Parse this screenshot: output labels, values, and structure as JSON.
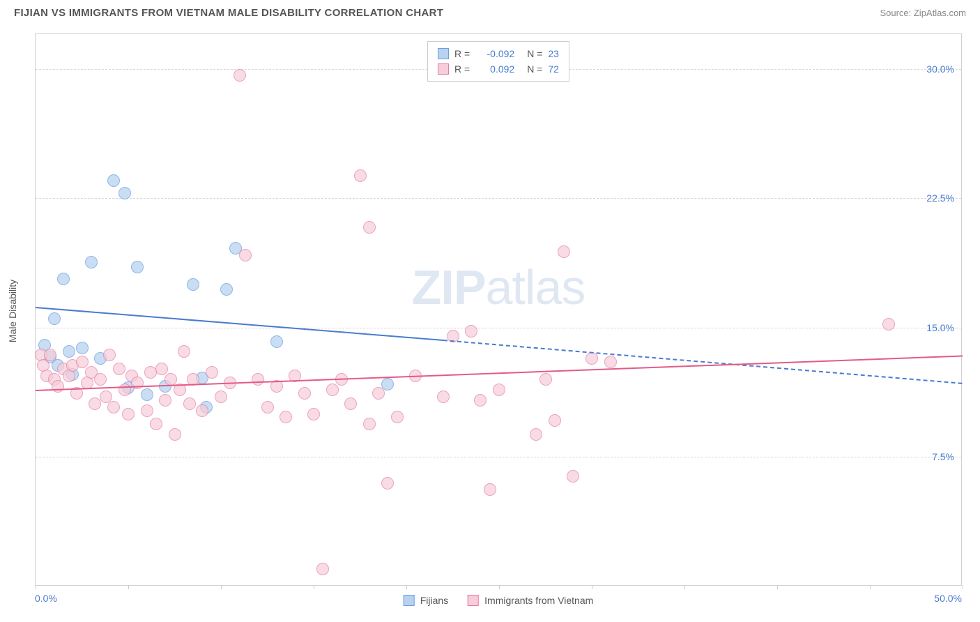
{
  "header": {
    "title": "FIJIAN VS IMMIGRANTS FROM VIETNAM MALE DISABILITY CORRELATION CHART",
    "source": "Source: ZipAtlas.com"
  },
  "watermark": {
    "prefix": "ZIP",
    "suffix": "atlas"
  },
  "chart": {
    "type": "scatter",
    "yaxis_title": "Male Disability",
    "background_color": "#ffffff",
    "grid_color": "#d8d8d8",
    "border_color": "#d0d0d0",
    "label_color": "#4a7bd0",
    "text_color": "#555555",
    "xlim": [
      0,
      50
    ],
    "ylim": [
      0,
      32
    ],
    "x_tick_positions": [
      0,
      5,
      10,
      15,
      20,
      25,
      30,
      35,
      40,
      45,
      50
    ],
    "x_labels": [
      {
        "value": 0,
        "text": "0.0%"
      },
      {
        "value": 50,
        "text": "50.0%"
      }
    ],
    "y_gridlines": [
      7.5,
      15.0,
      22.5,
      30.0
    ],
    "y_labels": [
      "7.5%",
      "15.0%",
      "22.5%",
      "30.0%"
    ],
    "series": [
      {
        "id": "fijians",
        "label": "Fijians",
        "fill_color": "#b8d2f0",
        "stroke_color": "#6b9fe0",
        "marker_radius": 9,
        "marker_opacity": 0.75,
        "R": "-0.092",
        "N": "23",
        "trend": {
          "solid": {
            "x1": 0,
            "y1": 16.2,
            "x2": 22,
            "y2": 14.3
          },
          "dashed": {
            "x1": 22,
            "y1": 14.3,
            "x2": 50,
            "y2": 11.8
          },
          "color": "#4a7bd0"
        },
        "points": [
          [
            0.5,
            14.0
          ],
          [
            0.8,
            13.3
          ],
          [
            1.0,
            15.5
          ],
          [
            1.2,
            12.8
          ],
          [
            1.5,
            17.8
          ],
          [
            1.8,
            13.6
          ],
          [
            2.0,
            12.3
          ],
          [
            2.5,
            13.8
          ],
          [
            3.0,
            18.8
          ],
          [
            3.5,
            13.2
          ],
          [
            4.2,
            23.5
          ],
          [
            4.8,
            22.8
          ],
          [
            5.0,
            11.5
          ],
          [
            5.5,
            18.5
          ],
          [
            6.0,
            11.1
          ],
          [
            7.0,
            11.6
          ],
          [
            8.5,
            17.5
          ],
          [
            9.0,
            12.1
          ],
          [
            9.2,
            10.4
          ],
          [
            10.3,
            17.2
          ],
          [
            10.8,
            19.6
          ],
          [
            13.0,
            14.2
          ],
          [
            19.0,
            11.7
          ]
        ]
      },
      {
        "id": "vietnam",
        "label": "Immigrants from Vietnam",
        "fill_color": "#f6cdd9",
        "stroke_color": "#e87b9f",
        "marker_radius": 9,
        "marker_opacity": 0.7,
        "R": "0.092",
        "N": "72",
        "trend": {
          "solid": {
            "x1": 0,
            "y1": 11.4,
            "x2": 50,
            "y2": 13.4
          },
          "color": "#e45a87"
        },
        "points": [
          [
            0.3,
            13.4
          ],
          [
            0.4,
            12.8
          ],
          [
            0.6,
            12.2
          ],
          [
            0.8,
            13.4
          ],
          [
            1.0,
            12.0
          ],
          [
            1.2,
            11.6
          ],
          [
            1.5,
            12.6
          ],
          [
            1.8,
            12.2
          ],
          [
            2.0,
            12.8
          ],
          [
            2.2,
            11.2
          ],
          [
            2.5,
            13.0
          ],
          [
            2.8,
            11.8
          ],
          [
            3.0,
            12.4
          ],
          [
            3.2,
            10.6
          ],
          [
            3.5,
            12.0
          ],
          [
            3.8,
            11.0
          ],
          [
            4.0,
            13.4
          ],
          [
            4.2,
            10.4
          ],
          [
            4.5,
            12.6
          ],
          [
            4.8,
            11.4
          ],
          [
            5.0,
            10.0
          ],
          [
            5.2,
            12.2
          ],
          [
            5.5,
            11.8
          ],
          [
            6.0,
            10.2
          ],
          [
            6.2,
            12.4
          ],
          [
            6.5,
            9.4
          ],
          [
            6.8,
            12.6
          ],
          [
            7.0,
            10.8
          ],
          [
            7.3,
            12.0
          ],
          [
            7.5,
            8.8
          ],
          [
            7.8,
            11.4
          ],
          [
            8.0,
            13.6
          ],
          [
            8.3,
            10.6
          ],
          [
            8.5,
            12.0
          ],
          [
            9.0,
            10.2
          ],
          [
            9.5,
            12.4
          ],
          [
            10.0,
            11.0
          ],
          [
            10.5,
            11.8
          ],
          [
            11.0,
            29.6
          ],
          [
            11.3,
            19.2
          ],
          [
            12.0,
            12.0
          ],
          [
            12.5,
            10.4
          ],
          [
            13.0,
            11.6
          ],
          [
            13.5,
            9.8
          ],
          [
            14.0,
            12.2
          ],
          [
            14.5,
            11.2
          ],
          [
            15.0,
            10.0
          ],
          [
            15.5,
            1.0
          ],
          [
            16.0,
            11.4
          ],
          [
            16.5,
            12.0
          ],
          [
            17.0,
            10.6
          ],
          [
            17.5,
            23.8
          ],
          [
            18.0,
            9.4
          ],
          [
            18.0,
            20.8
          ],
          [
            18.5,
            11.2
          ],
          [
            19.0,
            6.0
          ],
          [
            19.5,
            9.8
          ],
          [
            20.5,
            12.2
          ],
          [
            22.0,
            11.0
          ],
          [
            22.5,
            14.5
          ],
          [
            23.5,
            14.8
          ],
          [
            24.0,
            10.8
          ],
          [
            24.5,
            5.6
          ],
          [
            25.0,
            11.4
          ],
          [
            27.0,
            8.8
          ],
          [
            27.5,
            12.0
          ],
          [
            28.0,
            9.6
          ],
          [
            28.5,
            19.4
          ],
          [
            29.0,
            6.4
          ],
          [
            30.0,
            13.2
          ],
          [
            31.0,
            13.0
          ],
          [
            46.0,
            15.2
          ]
        ]
      }
    ],
    "legend_top": {
      "r_prefix": "R =",
      "n_prefix": "N ="
    }
  }
}
